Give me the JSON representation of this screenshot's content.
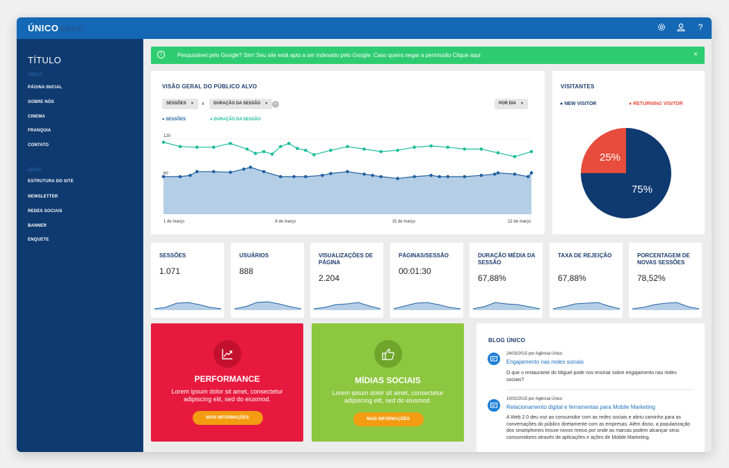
{
  "app": {
    "logo": "ÚNICO",
    "logo_suffix": "admin"
  },
  "topbar": {
    "icons": [
      "gear-icon",
      "user-icon",
      "help-icon"
    ],
    "help_glyph": "?"
  },
  "sidebar": {
    "title": "TÍTULO",
    "section1": "ÁREAS",
    "items1": [
      "PÁGINA INICIAL",
      "SOBRE NÓS",
      "CINEMA",
      "FRANQUIA",
      "CONTATO"
    ],
    "section2": "GERAL",
    "items2": [
      "ESTRUTURA DO SITE",
      "NEWSLETTER",
      "REDES SOCIAIS",
      "BANNER",
      "ENQUETE"
    ]
  },
  "alert": {
    "message": "Pesquisável pelo Google? Sim! Seu site está apto a ser indexado pelo Google. Caso queira negar a permissão Clique aqui",
    "close": "×",
    "info_glyph": "!"
  },
  "overview": {
    "title": "VISÃO GERAL DO PÚBLICO ALVO",
    "metric1": "SESSÕES",
    "vs": "x",
    "metric2": "DURAÇÃO DA SESSÃO",
    "period": "POR DIA",
    "legend1": "SESSÕES",
    "legend2": "DURAÇÃO DA SESSÃO"
  },
  "chart_data": {
    "type": "area",
    "x_ticks": [
      "1 de março",
      "8 de março",
      "15 de março",
      "22 de março"
    ],
    "y_ticks": [
      60,
      120
    ],
    "ylim": [
      0,
      140
    ],
    "colors": {
      "sessions": "#1f5fa0",
      "sessions_fill": "#b4cee6",
      "duration": "#1abc9c"
    },
    "series": [
      {
        "name": "SESSÕES",
        "x": [
          0,
          1,
          1.6,
          2,
          3,
          4,
          4.8,
          5.2,
          6,
          7,
          7.8,
          8.5,
          9.5,
          10,
          11,
          12,
          12.5,
          13,
          14,
          15,
          16,
          16.5,
          17,
          18,
          19,
          19.8,
          20,
          21,
          21.8,
          22
        ],
        "values": [
          60,
          60,
          62,
          68,
          68,
          67,
          72,
          75,
          68,
          60,
          60,
          60,
          62,
          65,
          68,
          64,
          62,
          60,
          57,
          60,
          62,
          60,
          60,
          60,
          62,
          64,
          66,
          64,
          60,
          66
        ]
      },
      {
        "name": "DURAÇÃO DA SESSÃO",
        "x": [
          0,
          1,
          2,
          3,
          4,
          5,
          5.5,
          6,
          6.5,
          7,
          7.5,
          8,
          8.5,
          9,
          10,
          11,
          12,
          13,
          14,
          15,
          16,
          17,
          18,
          19,
          20,
          21,
          22
        ],
        "values": [
          115,
          108,
          107,
          107,
          113,
          104,
          97,
          100,
          96,
          108,
          113,
          105,
          102,
          95,
          102,
          108,
          104,
          100,
          102,
          107,
          109,
          107,
          104,
          104,
          98,
          92,
          100
        ]
      }
    ]
  },
  "visitors": {
    "title": "VISITANTES",
    "legend_new": "NEW VISITOR",
    "legend_returning": "RETURNING VISITOR",
    "chart_data": {
      "type": "pie",
      "labels": [
        "NEW VISITOR",
        "RETURNING VISITOR"
      ],
      "values": [
        75,
        25
      ],
      "value_labels": [
        "75%",
        "25%"
      ],
      "colors": [
        "#0f3a70",
        "#e74c3c"
      ]
    }
  },
  "stats": [
    {
      "label": "SESSÕES",
      "value": "1.071"
    },
    {
      "label": "USUÁRIOS",
      "value": "888"
    },
    {
      "label": "VISUALIZAÇÕES DE PÁGINA",
      "value": "2.204"
    },
    {
      "label": "PÁGINAS/SESSÃO",
      "value": "00:01:30"
    },
    {
      "label": "DURAÇÃO MÉDIA DA SESSÃO",
      "value": "67,88%"
    },
    {
      "label": "TAXA DE REJEIÇÃO",
      "value": "67,88%"
    },
    {
      "label": "PORCENTAGEM DE NOVAS SESSÕES",
      "value": "78,52%"
    }
  ],
  "promos": [
    {
      "title": "PERFORMANCE",
      "desc": "Lorem ipsum dolor sit amet, consectetur adipiscing elit, sed do eiusmod.",
      "button": "MAIS INFORMAÇÕES",
      "icon": "trend-chart-icon",
      "color": "#e8193f"
    },
    {
      "title": "MÍDIAS SOCIAIS",
      "desc": "Lorem ipsum dolor sit amet, consectetur adipiscing elit, sed do eiusmod.",
      "button": "MAIS INFORMAÇÕES",
      "icon": "thumbs-up-icon",
      "color": "#8dc63f"
    }
  ],
  "blog": {
    "title": "BLOG ÚNICO",
    "posts": [
      {
        "meta": "24/03/2015 por Agência Único",
        "title": "Engajamento nas redes sociais",
        "desc": "O que o restaurante do Miguel pode nos ensinar sobre engajamento nas redes sociais?"
      },
      {
        "meta": "10/02/2015 por Agência Único",
        "title": "Relacionamento digital e ferramentas para Mobile Marketing",
        "desc": "A Web 2.0 deu voz ao consumidor com as redes sociais e abriu caminho para as conversações do público diretamente com as empresas. Além disso, a popularização dos smartphones trouxe novos meios por onde as marcas podem alcançar seus consumidores através de aplicações e ações de Mobile Marketing."
      }
    ]
  }
}
